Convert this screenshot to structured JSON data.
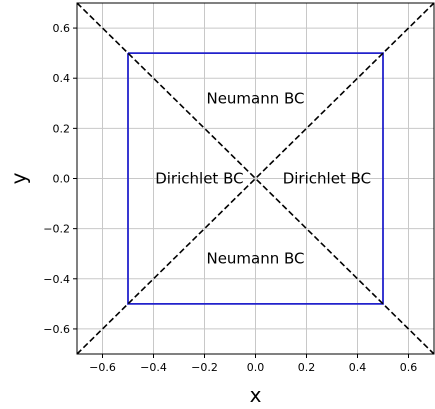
{
  "chart_data": {
    "type": "line",
    "xlabel": "x",
    "ylabel": "y",
    "xlim": [
      -0.7,
      0.7
    ],
    "ylim": [
      -0.7,
      0.7
    ],
    "grid": true,
    "x_ticks": [
      -0.6,
      -0.4,
      -0.2,
      0.0,
      0.2,
      0.4,
      0.6
    ],
    "y_ticks": [
      -0.6,
      -0.4,
      -0.2,
      0.0,
      0.2,
      0.4,
      0.6
    ],
    "x_tick_labels": [
      "−0.6",
      "−0.4",
      "−0.2",
      "0.0",
      "0.2",
      "0.4",
      "0.6"
    ],
    "y_tick_labels": [
      "−0.6",
      "−0.4",
      "−0.2",
      "0.0",
      "0.2",
      "0.4",
      "0.6"
    ],
    "series": [
      {
        "style": "solid",
        "color": "#2222cc",
        "x": [
          -0.5,
          0.5,
          0.5,
          -0.5,
          -0.5
        ],
        "y": [
          0.5,
          0.5,
          -0.5,
          -0.5,
          0.5
        ]
      },
      {
        "style": "dashed",
        "color": "#000000",
        "x": [
          -0.7,
          0.7
        ],
        "y": [
          -0.7,
          0.7
        ]
      },
      {
        "style": "dashed",
        "color": "#000000",
        "x": [
          -0.7,
          0.7
        ],
        "y": [
          0.7,
          -0.7
        ]
      }
    ],
    "annotations": [
      {
        "text": "Neumann BC",
        "x": 0.0,
        "y": 0.32
      },
      {
        "text": "Neumann BC",
        "x": 0.0,
        "y": -0.32
      },
      {
        "text": "Dirichlet BC",
        "x": -0.22,
        "y": 0.0
      },
      {
        "text": "Dirichlet BC",
        "x": 0.28,
        "y": 0.0
      }
    ]
  }
}
